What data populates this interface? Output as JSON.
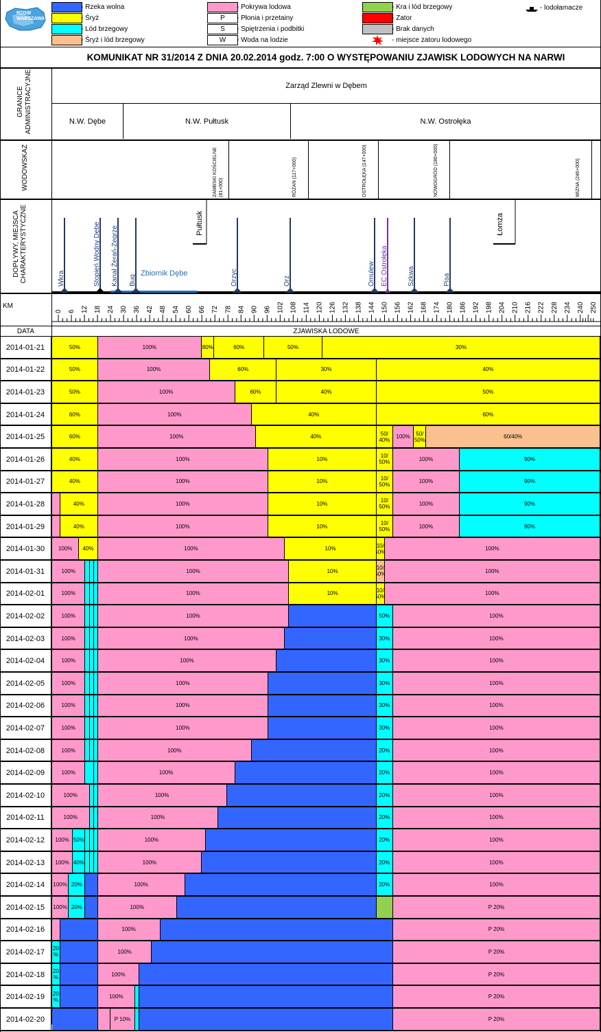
{
  "logo": {
    "text": "RZGW WARSZAWA"
  },
  "legend": {
    "items": [
      {
        "key": "wolna",
        "label": "- Rzeka wolna",
        "color": "#3366ff",
        "sym": ""
      },
      {
        "key": "sryz",
        "label": "- Śryż",
        "color": "#ffff00",
        "sym": ""
      },
      {
        "key": "lodb",
        "label": "- Lód brzegowy",
        "color": "#00ffff",
        "sym": ""
      },
      {
        "key": "sryzlod",
        "label": "- Śryż i lód brzegowy",
        "color": "#fac090",
        "sym": ""
      },
      {
        "key": "pokrywa",
        "label": "- Pokrywa lodowa",
        "color": "#ff99cc",
        "sym": ""
      },
      {
        "key": "plonia",
        "label": "- Płonia i przetainy",
        "color": "#ffffff",
        "sym": "P"
      },
      {
        "key": "spietrzenia",
        "label": "- Spiętrzenia i podbitki",
        "color": "#ffffff",
        "sym": "S"
      },
      {
        "key": "woda",
        "label": "- Woda na lodzie",
        "color": "#ffffff",
        "sym": "W"
      },
      {
        "key": "kra",
        "label": "- Kra i lód brzegowy",
        "color": "#92d050",
        "sym": ""
      },
      {
        "key": "zator",
        "label": "- Zator",
        "color": "#ff0000",
        "sym": ""
      },
      {
        "key": "brak",
        "label": "- Brak danych",
        "color": "#c0c0c0",
        "sym": ""
      },
      {
        "key": "miejsce",
        "label": "- miejsce zatoru lodowego",
        "color": "",
        "sym": "star"
      }
    ],
    "icebreaker_label": "- lodołamacze"
  },
  "title": "KOMUNIKAT NR 31/2014 Z DNIA 20.02.2014 godz. 7:00 O WYSTĘPOWANIU ZJAWISK LODOWYCH NA NARWI",
  "sections": {
    "granice": "GRANICE ADMINISTRACYJNE",
    "wodowskaz": "WODOWSKAZ",
    "doplywy": "DOPŁYWY, MIEJSCA CHARAKTERYSTYCZNE",
    "km": "KM",
    "data": "DATA",
    "zjawiska": "ZJAWISKA LODOWE"
  },
  "zarzad": "Zarząd Zlewni w Dębem",
  "nw": [
    "N.W. Dębe",
    "N.W. Pułtusk",
    "N.W. Ostrołęka"
  ],
  "gauges": [
    {
      "name": "ZAMBSKI KOŚCIELNE (81+000)"
    },
    {
      "name": "RÓŻAN (117+000)"
    },
    {
      "name": "OSTROŁĘKA (147+000)"
    },
    {
      "name": "NOWOGRÓD (180+000)"
    },
    {
      "name": "WIZNA (246+000)"
    }
  ],
  "tributaries": [
    {
      "name": "Wkra",
      "km": 2,
      "marker": "diamond"
    },
    {
      "name": "Stopień Wodny Dębe",
      "km": 21,
      "marker": "diamond-black"
    },
    {
      "name": "Kanał Żerań-Zegrze",
      "km": 29,
      "marker": "diamond"
    },
    {
      "name": "Bug",
      "km": 37,
      "marker": "diamond"
    },
    {
      "name": "Orzyc",
      "km": 84,
      "marker": "diamond"
    },
    {
      "name": "Orz",
      "km": 108,
      "marker": "diamond"
    },
    {
      "name": "Omulew",
      "km": 146,
      "marker": "diamond"
    },
    {
      "name": "EC Ostrołęka",
      "km": 152,
      "marker": "triangle"
    },
    {
      "name": "Szkwa",
      "km": 164,
      "marker": "diamond"
    },
    {
      "name": "Pisa",
      "km": 180,
      "marker": "diamond"
    }
  ],
  "towns": [
    {
      "name": "Pułtusk"
    },
    {
      "name": "Łomża"
    }
  ],
  "reservoir": "Zbiornik Dębe",
  "km_ticks": [
    "0",
    "6",
    "12",
    "18",
    "24",
    "30",
    "36",
    "42",
    "48",
    "54",
    "60",
    "66",
    "72",
    "78",
    "84",
    "90",
    "96",
    "102",
    "108",
    "114",
    "120",
    "126",
    "132",
    "138",
    "144",
    "150",
    "156",
    "162",
    "168",
    "174",
    "180",
    "186",
    "192",
    "198",
    "204",
    "210",
    "216",
    "222",
    "228",
    "234",
    "240",
    "250"
  ],
  "colors": {
    "Y": "#ffff00",
    "P": "#ff99cc",
    "C": "#00ffff",
    "B": "#3366ff",
    "O": "#fac090",
    "G": "#92d050"
  },
  "rows": [
    {
      "date": "2014-01-21",
      "segs": [
        [
          "Y",
          22,
          "50%"
        ],
        [
          "P",
          50,
          "100%"
        ],
        [
          "Y",
          6,
          "80%"
        ],
        [
          "Y",
          24,
          "60%"
        ],
        [
          "Y",
          28,
          "50%"
        ],
        [
          "Y",
          132,
          "30%"
        ]
      ]
    },
    {
      "date": "2014-01-22",
      "segs": [
        [
          "Y",
          22,
          "50%"
        ],
        [
          "P",
          54,
          "100%"
        ],
        [
          "Y",
          32,
          "60%"
        ],
        [
          "Y",
          48,
          "30%"
        ],
        [
          "Y",
          106,
          "40%"
        ]
      ]
    },
    {
      "date": "2014-01-23",
      "segs": [
        [
          "Y",
          22,
          "50%"
        ],
        [
          "P",
          66,
          "100%"
        ],
        [
          "Y",
          20,
          "60%"
        ],
        [
          "Y",
          48,
          "40%"
        ],
        [
          "Y",
          106,
          "50%"
        ]
      ]
    },
    {
      "date": "2014-01-24",
      "segs": [
        [
          "Y",
          22,
          "60%"
        ],
        [
          "P",
          74,
          "100%"
        ],
        [
          "Y",
          60,
          "40%"
        ],
        [
          "Y",
          106,
          "60%"
        ]
      ]
    },
    {
      "date": "2014-01-25",
      "segs": [
        [
          "Y",
          22,
          "60%"
        ],
        [
          "P",
          76,
          "100%"
        ],
        [
          "Y",
          58,
          "40%"
        ],
        [
          "Y",
          8,
          "50/ 40%"
        ],
        [
          "P",
          10,
          "100%"
        ],
        [
          "Y",
          6,
          "50/ 50%"
        ],
        [
          "O",
          82,
          "60/40%"
        ]
      ]
    },
    {
      "date": "2014-01-26",
      "segs": [
        [
          "Y",
          22,
          "40%"
        ],
        [
          "P",
          82,
          "100%"
        ],
        [
          "Y",
          52,
          "10%"
        ],
        [
          "Y",
          8,
          "10/ 50%"
        ],
        [
          "P",
          32,
          "100%"
        ],
        [
          "C",
          66,
          "90%"
        ]
      ]
    },
    {
      "date": "2014-01-27",
      "segs": [
        [
          "Y",
          22,
          "40%"
        ],
        [
          "P",
          82,
          "100%"
        ],
        [
          "Y",
          52,
          "10%"
        ],
        [
          "Y",
          8,
          "10/ 50%"
        ],
        [
          "P",
          32,
          "100%"
        ],
        [
          "C",
          66,
          "90%"
        ]
      ]
    },
    {
      "date": "2014-01-28",
      "segs": [
        [
          "P",
          4,
          ""
        ],
        [
          "Y",
          18,
          "40%"
        ],
        [
          "P",
          82,
          "100%"
        ],
        [
          "Y",
          52,
          "10%"
        ],
        [
          "Y",
          8,
          "10/ 50%"
        ],
        [
          "P",
          32,
          "100%"
        ],
        [
          "C",
          66,
          "90%"
        ]
      ]
    },
    {
      "date": "2014-01-29",
      "segs": [
        [
          "P",
          4,
          ""
        ],
        [
          "Y",
          18,
          "40%"
        ],
        [
          "P",
          82,
          "100%"
        ],
        [
          "Y",
          52,
          "10%"
        ],
        [
          "Y",
          8,
          "10/ 50%"
        ],
        [
          "P",
          32,
          "100%"
        ],
        [
          "C",
          66,
          "90%"
        ]
      ]
    },
    {
      "date": "2014-01-30",
      "segs": [
        [
          "P",
          13,
          "100%"
        ],
        [
          "Y",
          9,
          "40%"
        ],
        [
          "P",
          90,
          "100%"
        ],
        [
          "Y",
          44,
          "10%"
        ],
        [
          "Y",
          4,
          "10/ 50%"
        ],
        [
          "P",
          102,
          "100%"
        ]
      ]
    },
    {
      "date": "2014-01-31",
      "segs": [
        [
          "P",
          16,
          "100%"
        ],
        [
          "C",
          2,
          ""
        ],
        [
          "C",
          2,
          ""
        ],
        [
          "C",
          2,
          ""
        ],
        [
          "P",
          92,
          "100%"
        ],
        [
          "Y",
          42,
          "10%"
        ],
        [
          "O",
          4,
          "10/ 50%"
        ],
        [
          "P",
          102,
          "100%"
        ]
      ]
    },
    {
      "date": "2014-02-01",
      "segs": [
        [
          "P",
          16,
          "100%"
        ],
        [
          "C",
          2,
          ""
        ],
        [
          "C",
          2,
          ""
        ],
        [
          "C",
          2,
          ""
        ],
        [
          "P",
          92,
          "100%"
        ],
        [
          "Y",
          42,
          "10%"
        ],
        [
          "Y",
          4,
          "10/ 50%"
        ],
        [
          "P",
          102,
          "100%"
        ]
      ]
    },
    {
      "date": "2014-02-02",
      "segs": [
        [
          "P",
          16,
          "100%"
        ],
        [
          "C",
          2,
          ""
        ],
        [
          "C",
          2,
          ""
        ],
        [
          "C",
          2,
          ""
        ],
        [
          "P",
          92,
          "100%"
        ],
        [
          "B",
          42,
          ""
        ],
        [
          "C",
          8,
          "50%"
        ],
        [
          "P",
          98,
          "100%"
        ]
      ]
    },
    {
      "date": "2014-02-03",
      "segs": [
        [
          "P",
          16,
          "100%"
        ],
        [
          "C",
          2,
          ""
        ],
        [
          "C",
          2,
          ""
        ],
        [
          "C",
          2,
          ""
        ],
        [
          "P",
          90,
          "100%"
        ],
        [
          "B",
          44,
          ""
        ],
        [
          "C",
          8,
          "30%"
        ],
        [
          "P",
          98,
          "100%"
        ]
      ]
    },
    {
      "date": "2014-02-04",
      "segs": [
        [
          "P",
          16,
          "100%"
        ],
        [
          "C",
          2,
          ""
        ],
        [
          "C",
          2,
          ""
        ],
        [
          "C",
          2,
          ""
        ],
        [
          "P",
          86,
          "100%"
        ],
        [
          "B",
          48,
          ""
        ],
        [
          "C",
          8,
          "30%"
        ],
        [
          "P",
          98,
          "100%"
        ]
      ]
    },
    {
      "date": "2014-02-05",
      "segs": [
        [
          "P",
          16,
          "100%"
        ],
        [
          "C",
          2,
          ""
        ],
        [
          "C",
          2,
          ""
        ],
        [
          "C",
          2,
          ""
        ],
        [
          "P",
          82,
          "100%"
        ],
        [
          "B",
          52,
          ""
        ],
        [
          "C",
          8,
          "30%"
        ],
        [
          "P",
          98,
          "100%"
        ]
      ]
    },
    {
      "date": "2014-02-06",
      "segs": [
        [
          "P",
          16,
          "100%"
        ],
        [
          "C",
          2,
          ""
        ],
        [
          "C",
          2,
          ""
        ],
        [
          "C",
          2,
          ""
        ],
        [
          "P",
          82,
          "100%"
        ],
        [
          "B",
          52,
          ""
        ],
        [
          "C",
          8,
          "30%"
        ],
        [
          "P",
          98,
          "100%"
        ]
      ]
    },
    {
      "date": "2014-02-07",
      "segs": [
        [
          "P",
          16,
          "100%"
        ],
        [
          "C",
          2,
          ""
        ],
        [
          "C",
          2,
          ""
        ],
        [
          "C",
          2,
          ""
        ],
        [
          "P",
          82,
          "100%"
        ],
        [
          "B",
          52,
          ""
        ],
        [
          "C",
          8,
          "30%"
        ],
        [
          "P",
          98,
          "100%"
        ]
      ]
    },
    {
      "date": "2014-02-08",
      "segs": [
        [
          "P",
          16,
          "100%"
        ],
        [
          "C",
          2,
          ""
        ],
        [
          "C",
          2,
          ""
        ],
        [
          "C",
          2,
          ""
        ],
        [
          "P",
          74,
          "100%"
        ],
        [
          "B",
          60,
          ""
        ],
        [
          "C",
          8,
          "20%"
        ],
        [
          "P",
          98,
          "100%"
        ]
      ]
    },
    {
      "date": "2014-02-09",
      "segs": [
        [
          "P",
          16,
          "100%"
        ],
        [
          "C",
          4,
          ""
        ],
        [
          "C",
          2,
          ""
        ],
        [
          "P",
          66,
          "100%"
        ],
        [
          "B",
          68,
          ""
        ],
        [
          "C",
          8,
          "20%"
        ],
        [
          "P",
          98,
          "100%"
        ]
      ]
    },
    {
      "date": "2014-02-10",
      "segs": [
        [
          "P",
          18,
          "100%"
        ],
        [
          "C",
          2,
          ""
        ],
        [
          "C",
          2,
          ""
        ],
        [
          "P",
          62,
          "100%"
        ],
        [
          "B",
          72,
          ""
        ],
        [
          "C",
          8,
          "20%"
        ],
        [
          "P",
          98,
          "100%"
        ]
      ]
    },
    {
      "date": "2014-02-11",
      "segs": [
        [
          "P",
          18,
          "100%"
        ],
        [
          "C",
          2,
          ""
        ],
        [
          "C",
          2,
          ""
        ],
        [
          "P",
          58,
          "100%"
        ],
        [
          "B",
          76,
          ""
        ],
        [
          "C",
          8,
          "20%"
        ],
        [
          "P",
          98,
          "100%"
        ]
      ]
    },
    {
      "date": "2014-02-12",
      "segs": [
        [
          "P",
          10,
          "100%"
        ],
        [
          "C",
          6,
          "50%"
        ],
        [
          "C",
          2,
          ""
        ],
        [
          "C",
          2,
          ""
        ],
        [
          "C",
          2,
          ""
        ],
        [
          "P",
          52,
          "100%"
        ],
        [
          "B",
          82,
          ""
        ],
        [
          "C",
          8,
          "20%"
        ],
        [
          "P",
          98,
          "100%"
        ]
      ]
    },
    {
      "date": "2014-02-13",
      "segs": [
        [
          "P",
          10,
          "100%"
        ],
        [
          "C",
          6,
          "40%"
        ],
        [
          "C",
          2,
          ""
        ],
        [
          "C",
          2,
          ""
        ],
        [
          "C",
          2,
          ""
        ],
        [
          "P",
          50,
          "100%"
        ],
        [
          "B",
          84,
          ""
        ],
        [
          "C",
          8,
          "20%"
        ],
        [
          "P",
          98,
          "100%"
        ]
      ]
    },
    {
      "date": "2014-02-14",
      "segs": [
        [
          "P",
          8,
          "100%"
        ],
        [
          "C",
          8,
          "20%"
        ],
        [
          "B",
          6,
          ""
        ],
        [
          "P",
          42,
          "100%"
        ],
        [
          "B",
          92,
          ""
        ],
        [
          "C",
          8,
          "20%"
        ],
        [
          "P",
          98,
          "100%"
        ]
      ]
    },
    {
      "date": "2014-02-15",
      "segs": [
        [
          "P",
          8,
          "100%"
        ],
        [
          "C",
          8,
          "20%"
        ],
        [
          "B",
          6,
          ""
        ],
        [
          "P",
          38,
          "100%"
        ],
        [
          "B",
          96,
          ""
        ],
        [
          "G",
          8,
          ""
        ],
        [
          "P",
          98,
          "P 20%"
        ]
      ]
    },
    {
      "date": "2014-02-16",
      "segs": [
        [
          "P",
          4,
          ""
        ],
        [
          "B",
          18,
          ""
        ],
        [
          "P",
          30,
          "100%"
        ],
        [
          "B",
          112,
          ""
        ],
        [
          "P",
          98,
          "P 20%"
        ]
      ]
    },
    {
      "date": "2014-02-17",
      "segs": [
        [
          "C",
          4,
          "20 %"
        ],
        [
          "B",
          18,
          ""
        ],
        [
          "P",
          26,
          "100%"
        ],
        [
          "B",
          116,
          ""
        ],
        [
          "P",
          98,
          "P 20%"
        ]
      ]
    },
    {
      "date": "2014-02-18",
      "segs": [
        [
          "C",
          4,
          "20 %"
        ],
        [
          "B",
          18,
          ""
        ],
        [
          "P",
          20,
          "100%"
        ],
        [
          "B",
          122,
          ""
        ],
        [
          "P",
          98,
          "P 20%"
        ]
      ]
    },
    {
      "date": "2014-02-19",
      "segs": [
        [
          "C",
          4,
          "20 %"
        ],
        [
          "B",
          18,
          ""
        ],
        [
          "P",
          18,
          "100%"
        ],
        [
          "C",
          2,
          ""
        ],
        [
          "B",
          122,
          ""
        ],
        [
          "P",
          98,
          "P 20%"
        ]
      ]
    },
    {
      "date": "2014-02-20",
      "segs": [
        [
          "B",
          22,
          ""
        ],
        [
          "P",
          6,
          ""
        ],
        [
          "P",
          12,
          "P 10%"
        ],
        [
          "C",
          2,
          ""
        ],
        [
          "B",
          122,
          ""
        ],
        [
          "P",
          98,
          "P 20%"
        ]
      ]
    }
  ]
}
